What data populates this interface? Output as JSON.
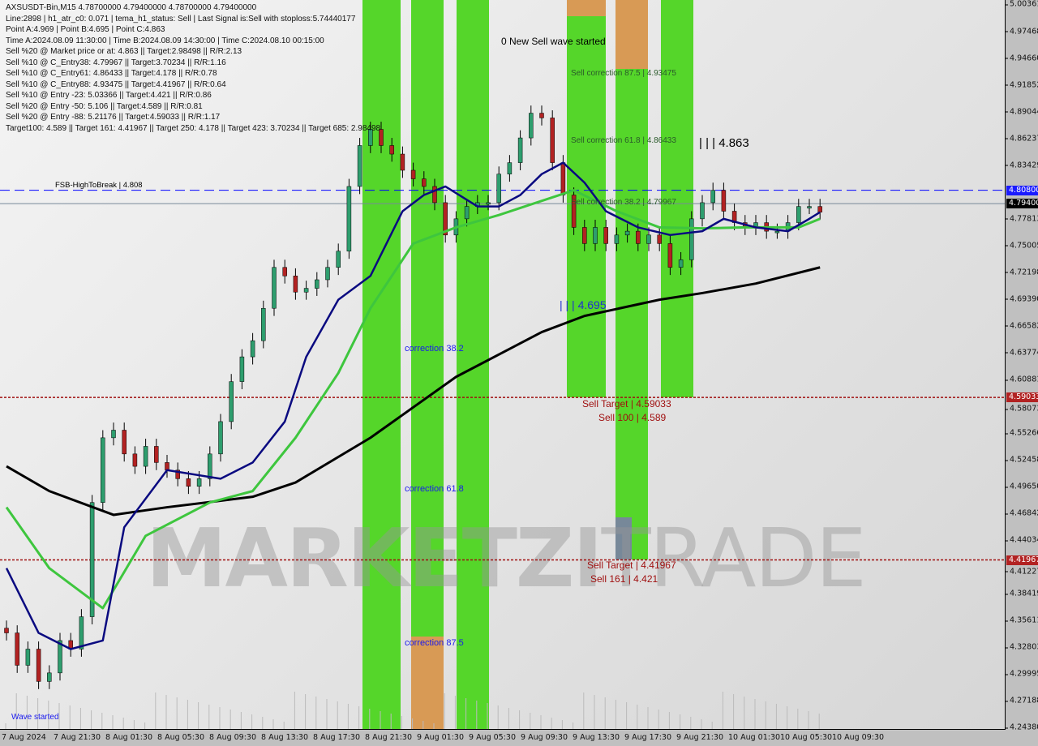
{
  "info_lines": [
    "AXSUSDT-Bin,M15  4.78700000 4.79400000 4.78700000 4.79400000",
    "Line:2898 | h1_atr_c0: 0.071 | tema_h1_status: Sell | Last Signal is:Sell with stoploss:5.74440177",
    "Point A:4.969 | Point B:4.695 | Point C:4.863",
    "Time A:2024.08.09 11:30:00 | Time B:2024.08.09 14:30:00 | Time C:2024.08.10 00:15:00",
    "Sell %20 @ Market price or at: 4.863 || Target:2.98498 || R/R:2.13",
    "Sell %10 @ C_Entry38: 4.79967 || Target:3.70234 || R/R:1.16",
    "Sell %10 @ C_Entry61: 4.86433 || Target:4.178 || R/R:0.78",
    "Sell %10 @ C_Entry88: 4.93475 || Target:4.41967 || R/R:0.64",
    "Sell %10 @ Entry -23: 5.03366 || Target:4.421 || R/R:0.86",
    "Sell %20 @ Entry -50: 5.106 || Target:4.589 || R/R:0.81",
    "Sell %20 @ Entry -88: 5.21176 || Target:4.59033 || R/R:1.17",
    "Target100: 4.589 || Target 161: 4.41967 || Target 250: 4.178 || Target 423: 3.70234 || Target 685: 2.98498"
  ],
  "annotations": {
    "new_wave": "0 New Sell wave started",
    "sell_corr_875": "Sell correction 87.5 | 4.93475",
    "sell_corr_618": "Sell correction 61.8 | 4.86433",
    "sell_corr_382": "Sell correction 38.2 | 4.79967",
    "point_c": "| | | 4.863",
    "point_b": "| | | 4.695",
    "fsb": "FSB-HighToBreak | 4.808",
    "corr_382": "correction 38.2",
    "corr_618": "correction 61.8",
    "corr_875": "correction 87.5",
    "sell_target_1": "Sell Target | 4.59033",
    "sell_100": "Sell 100 | 4.589",
    "sell_target_2": "Sell Target | 4.41967",
    "sell_161": "Sell 161 | 4.421",
    "wave_started": "Wave started",
    "watermark_a": "MARKETZI",
    "watermark_b": "TRADE"
  },
  "price_axis": [
    "5.00361",
    "4.97468",
    "4.94660",
    "4.91852",
    "4.89044",
    "4.86237",
    "4.83429",
    "4.80800",
    "4.79400",
    "4.77813",
    "4.75005",
    "4.72198",
    "4.69390",
    "4.66582",
    "4.63774",
    "4.60881",
    "4.59033",
    "4.58073",
    "4.55266",
    "4.52458",
    "4.49650",
    "4.46842",
    "4.44034",
    "4.41967",
    "4.41227",
    "4.38419",
    "4.35611",
    "4.32803",
    "4.29995",
    "4.27188",
    "4.24380"
  ],
  "price_tags": {
    "fsb": "4.80800",
    "current": "4.79400",
    "target1": "4.59033",
    "target2": "4.41967"
  },
  "time_axis": [
    "7 Aug 2024",
    "7 Aug 21:30",
    "8 Aug 01:30",
    "8 Aug 05:30",
    "8 Aug 09:30",
    "8 Aug 13:30",
    "8 Aug 17:30",
    "8 Aug 21:30",
    "9 Aug 01:30",
    "9 Aug 05:30",
    "9 Aug 09:30",
    "9 Aug 13:30",
    "9 Aug 17:30",
    "9 Aug 21:30",
    "10 Aug 01:30",
    "10 Aug 05:30",
    "10 Aug 09:30"
  ],
  "colors": {
    "bull": "#2e9e6e",
    "bear": "#b22222",
    "ma_fast": "#0a0a80",
    "ma_mid": "#3ec63e",
    "ma_slow": "#000000",
    "fsb_line": "#0000ff",
    "target_line": "#a01010"
  },
  "chart_data": {
    "type": "candlestick",
    "symbol": "AXSUSDT-Bin",
    "timeframe": "M15",
    "ylim": [
      4.2438,
      5.00361
    ],
    "closes": [
      4.343,
      4.309,
      4.326,
      4.292,
      4.301,
      4.335,
      4.326,
      4.36,
      4.48,
      4.548,
      4.556,
      4.531,
      4.518,
      4.539,
      4.522,
      4.514,
      4.505,
      4.497,
      4.505,
      4.531,
      4.565,
      4.607,
      4.633,
      4.65,
      4.684,
      4.727,
      4.718,
      4.701,
      4.705,
      4.714,
      4.727,
      4.744,
      4.812,
      4.855,
      4.872,
      4.855,
      4.846,
      4.829,
      4.82,
      4.812,
      4.795,
      4.761,
      4.778,
      4.791,
      4.795,
      4.795,
      4.825,
      4.837,
      4.863,
      4.889,
      4.884,
      4.837,
      4.803,
      4.769,
      4.752,
      4.769,
      4.752,
      4.761,
      4.765,
      4.752,
      4.761,
      4.752,
      4.727,
      4.735,
      4.778,
      4.795,
      4.808,
      4.786,
      4.774,
      4.769,
      4.774,
      4.765,
      4.765,
      4.774,
      4.791,
      4.791,
      4.785
    ],
    "ma_slow": [
      [
        0,
        4.518
      ],
      [
        4,
        4.492
      ],
      [
        10,
        4.467
      ],
      [
        15,
        4.475
      ],
      [
        23,
        4.486
      ],
      [
        27,
        4.501
      ],
      [
        34,
        4.548
      ],
      [
        42,
        4.612
      ],
      [
        50,
        4.659
      ],
      [
        54,
        4.676
      ],
      [
        61,
        4.693
      ],
      [
        65,
        4.7
      ],
      [
        70,
        4.71
      ],
      [
        76,
        4.727
      ]
    ],
    "ma_mid": [
      [
        0,
        4.475
      ],
      [
        4,
        4.411
      ],
      [
        9,
        4.369
      ],
      [
        13,
        4.445
      ],
      [
        19,
        4.48
      ],
      [
        23,
        4.492
      ],
      [
        27,
        4.548
      ],
      [
        31,
        4.616
      ],
      [
        34,
        4.684
      ],
      [
        38,
        4.752
      ],
      [
        42,
        4.769
      ],
      [
        46,
        4.782
      ],
      [
        53,
        4.808
      ],
      [
        57,
        4.786
      ],
      [
        61,
        4.769
      ],
      [
        65,
        4.768
      ],
      [
        69,
        4.769
      ],
      [
        74,
        4.769
      ],
      [
        76,
        4.778
      ]
    ],
    "ma_fast": [
      [
        0,
        4.411
      ],
      [
        3,
        4.343
      ],
      [
        6,
        4.326
      ],
      [
        9,
        4.335
      ],
      [
        11,
        4.454
      ],
      [
        15,
        4.514
      ],
      [
        20,
        4.505
      ],
      [
        23,
        4.522
      ],
      [
        26,
        4.565
      ],
      [
        28,
        4.633
      ],
      [
        31,
        4.693
      ],
      [
        34,
        4.718
      ],
      [
        37,
        4.786
      ],
      [
        39,
        4.803
      ],
      [
        41,
        4.812
      ],
      [
        44,
        4.791
      ],
      [
        46,
        4.791
      ],
      [
        48,
        4.803
      ],
      [
        50,
        4.825
      ],
      [
        52,
        4.837
      ],
      [
        54,
        4.816
      ],
      [
        56,
        4.786
      ],
      [
        59,
        4.769
      ],
      [
        62,
        4.761
      ],
      [
        65,
        4.765
      ],
      [
        67,
        4.778
      ],
      [
        70,
        4.769
      ],
      [
        73,
        4.765
      ],
      [
        75,
        4.778
      ],
      [
        76,
        4.785
      ]
    ],
    "levels": {
      "fsb_high_to_break": 4.808,
      "current": 4.794,
      "target_1": 4.59033,
      "target_2": 4.41967
    }
  }
}
